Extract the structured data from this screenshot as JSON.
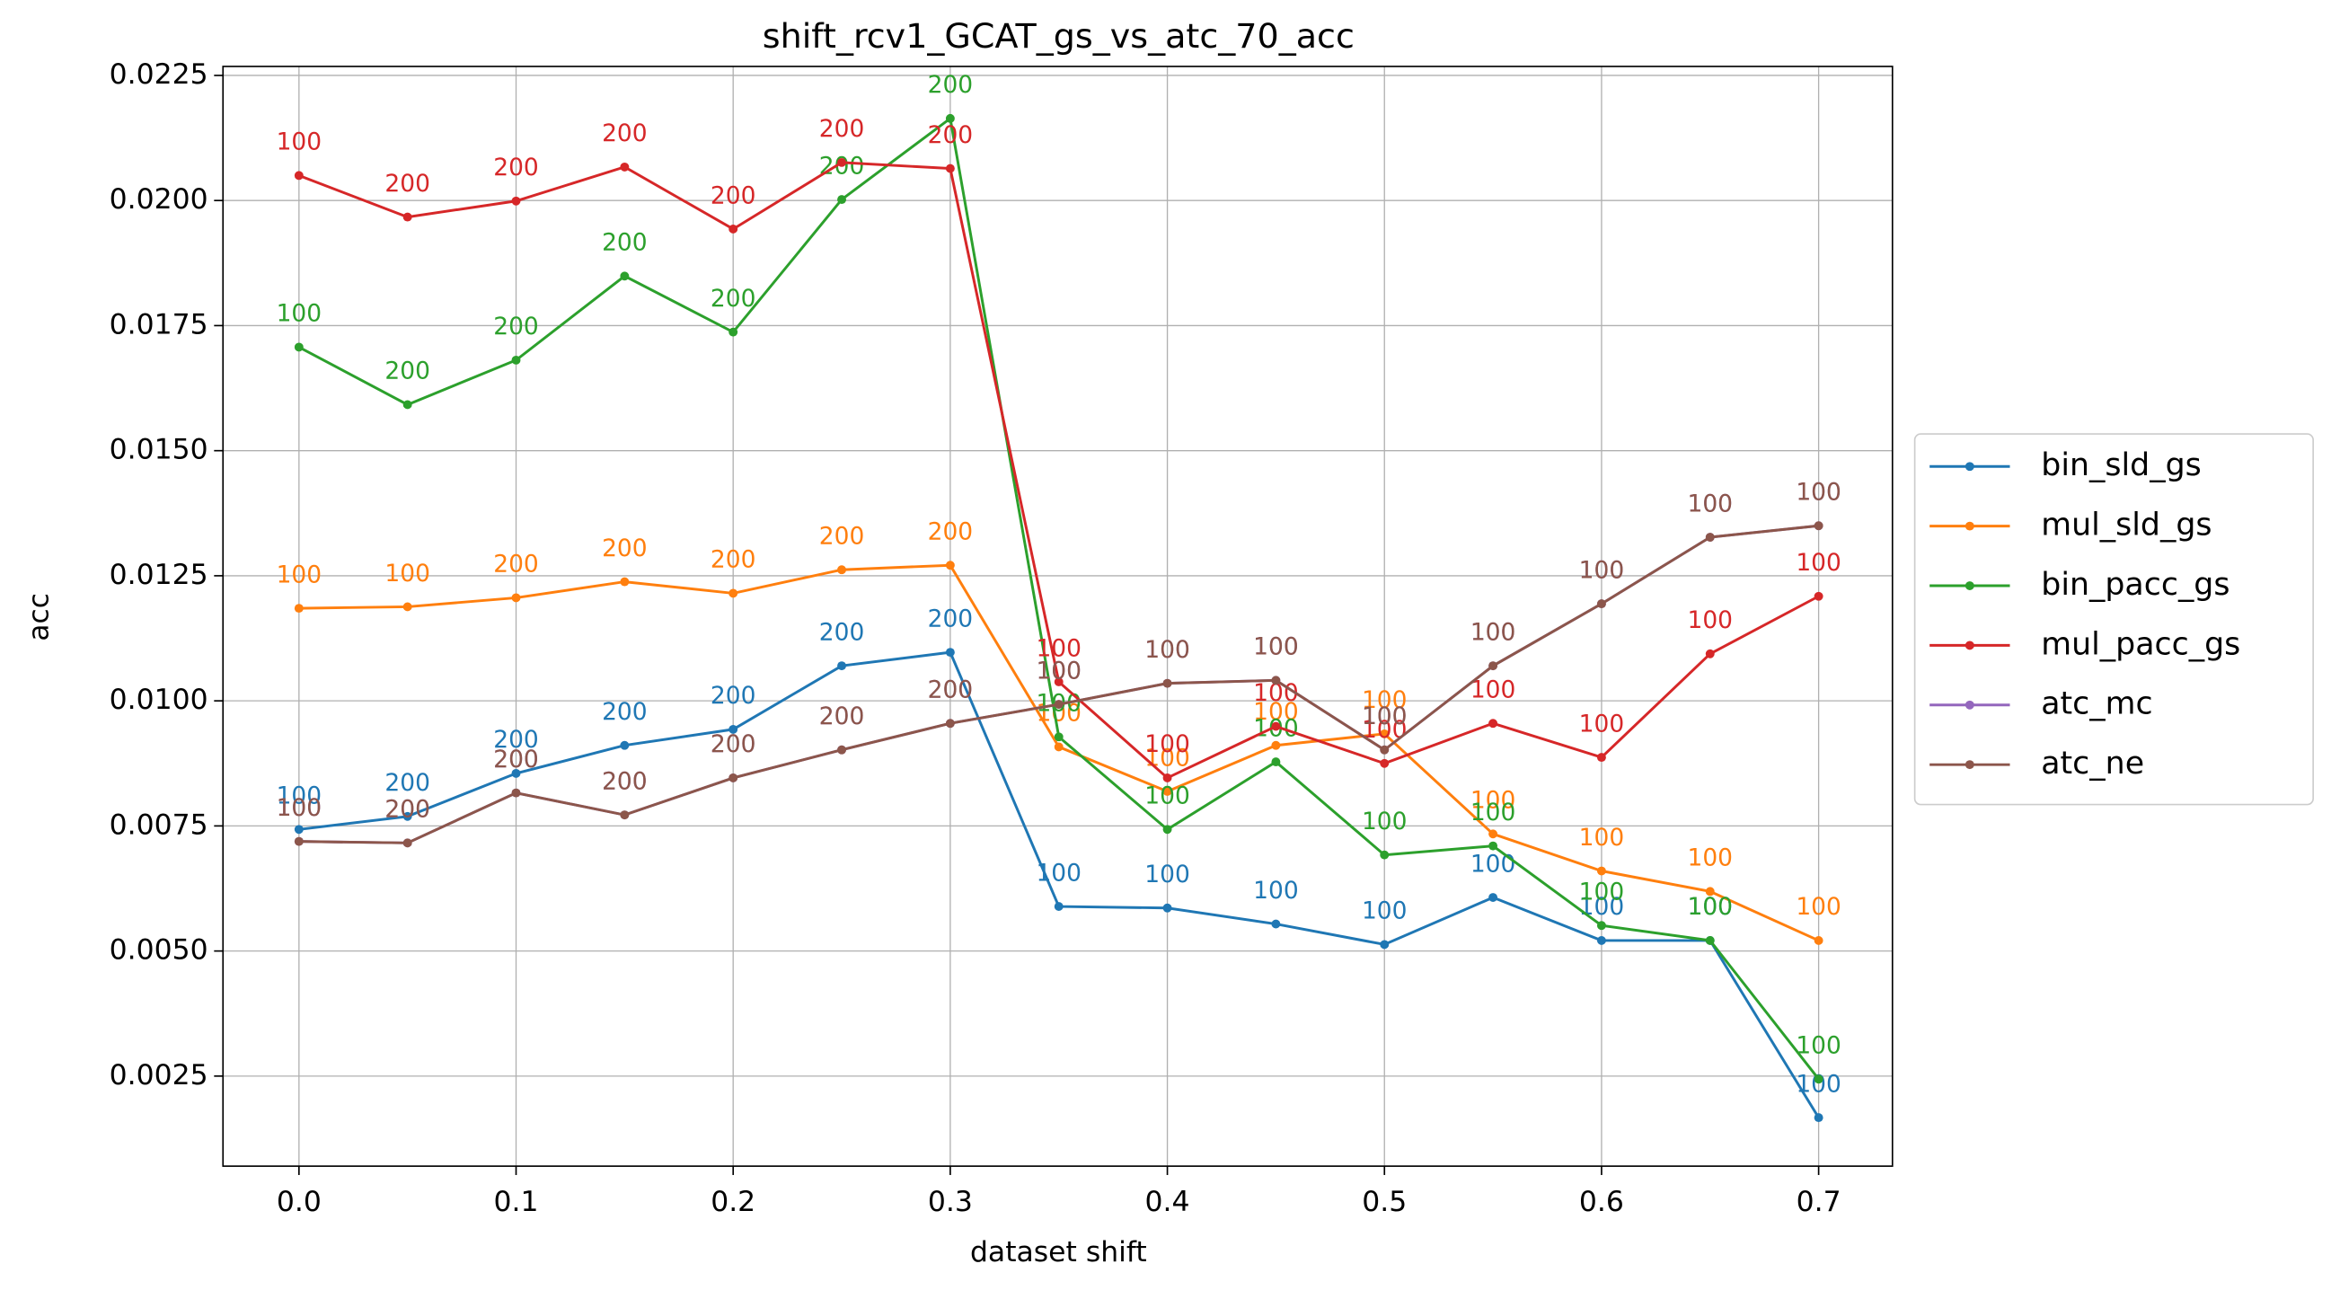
{
  "chart_data": {
    "type": "line",
    "title": "shift_rcv1_GCAT_gs_vs_atc_70_acc",
    "xlabel": "dataset shift",
    "ylabel": "acc",
    "x": [
      0.0,
      0.05,
      0.1,
      0.15,
      0.2,
      0.25,
      0.3,
      0.35,
      0.4,
      0.45,
      0.5,
      0.55,
      0.6,
      0.65,
      0.7
    ],
    "xlim": [
      -0.035,
      0.734
    ],
    "ylim": [
      0.0007,
      0.02268
    ],
    "xticks": [
      {
        "value": 0.0,
        "label": "0.0"
      },
      0.1,
      0.2,
      0.3,
      0.4,
      0.5,
      0.6,
      0.7
    ],
    "yticks": [
      0.0025,
      {
        "value": 0.005,
        "label": "0.0050"
      },
      0.0075,
      {
        "value": 0.01,
        "label": "0.0100"
      },
      0.0125,
      {
        "value": 0.015,
        "label": "0.0150"
      },
      0.0175,
      {
        "value": 0.02,
        "label": "0.0200"
      },
      0.0225
    ],
    "grid": true,
    "legend": "outside right",
    "series": [
      {
        "name": "bin_sld_gs",
        "color": "#1f77b4",
        "values": [
          0.00743,
          0.00769,
          0.00855,
          0.00911,
          0.00943,
          0.0107,
          0.01097,
          0.00589,
          0.00586,
          0.00554,
          0.00513,
          0.00607,
          0.00521,
          0.00521,
          0.00167
        ],
        "point_labels": [
          100,
          200,
          200,
          200,
          200,
          200,
          200,
          100,
          100,
          100,
          100,
          100,
          100,
          100,
          100
        ]
      },
      {
        "name": "mul_sld_gs",
        "color": "#ff7f0e",
        "values": [
          0.01185,
          0.01188,
          0.01206,
          0.01238,
          0.01215,
          0.01262,
          0.01271,
          0.00908,
          0.00819,
          0.00911,
          0.00934,
          0.00734,
          0.0066,
          0.00619,
          0.00521
        ],
        "point_labels": [
          100,
          100,
          200,
          200,
          200,
          200,
          200,
          100,
          100,
          100,
          100,
          100,
          100,
          100,
          100
        ]
      },
      {
        "name": "bin_pacc_gs",
        "color": "#2ca02c",
        "values": [
          0.01707,
          0.01592,
          0.01681,
          0.01849,
          0.01737,
          0.02002,
          0.02164,
          0.00928,
          0.00743,
          0.00878,
          0.00692,
          0.0071,
          0.00551,
          0.00521,
          0.00244
        ],
        "point_labels": [
          100,
          200,
          200,
          200,
          200,
          200,
          200,
          100,
          100,
          100,
          100,
          100,
          100,
          100,
          100
        ]
      },
      {
        "name": "mul_pacc_gs",
        "color": "#d62728",
        "values": [
          0.0205,
          0.01967,
          0.01999,
          0.02067,
          0.01943,
          0.02076,
          0.02064,
          0.01038,
          0.00846,
          0.00949,
          0.00875,
          0.00955,
          0.00887,
          0.01094,
          0.01209
        ],
        "point_labels": [
          100,
          200,
          200,
          200,
          200,
          200,
          200,
          100,
          100,
          100,
          100,
          100,
          100,
          100,
          100
        ]
      },
      {
        "name": "atc_mc",
        "color": "#9467bd",
        "values": [
          0.00719,
          0.00716,
          0.00816,
          0.00772,
          0.00846,
          0.00902,
          0.00955,
          0.00993,
          0.01035,
          0.01041,
          0.00902,
          0.0107,
          0.01194,
          0.01327,
          0.0135
        ],
        "point_labels": [
          100,
          200,
          200,
          200,
          200,
          200,
          200,
          100,
          100,
          100,
          100,
          100,
          100,
          100,
          100
        ]
      },
      {
        "name": "atc_ne",
        "color": "#8c564b",
        "values": [
          0.00719,
          0.00716,
          0.00816,
          0.00772,
          0.00846,
          0.00902,
          0.00955,
          0.00993,
          0.01035,
          0.01041,
          0.00902,
          0.0107,
          0.01194,
          0.01327,
          0.0135
        ],
        "point_labels": [
          100,
          200,
          200,
          200,
          200,
          200,
          200,
          100,
          100,
          100,
          100,
          100,
          100,
          100,
          100
        ]
      }
    ]
  }
}
